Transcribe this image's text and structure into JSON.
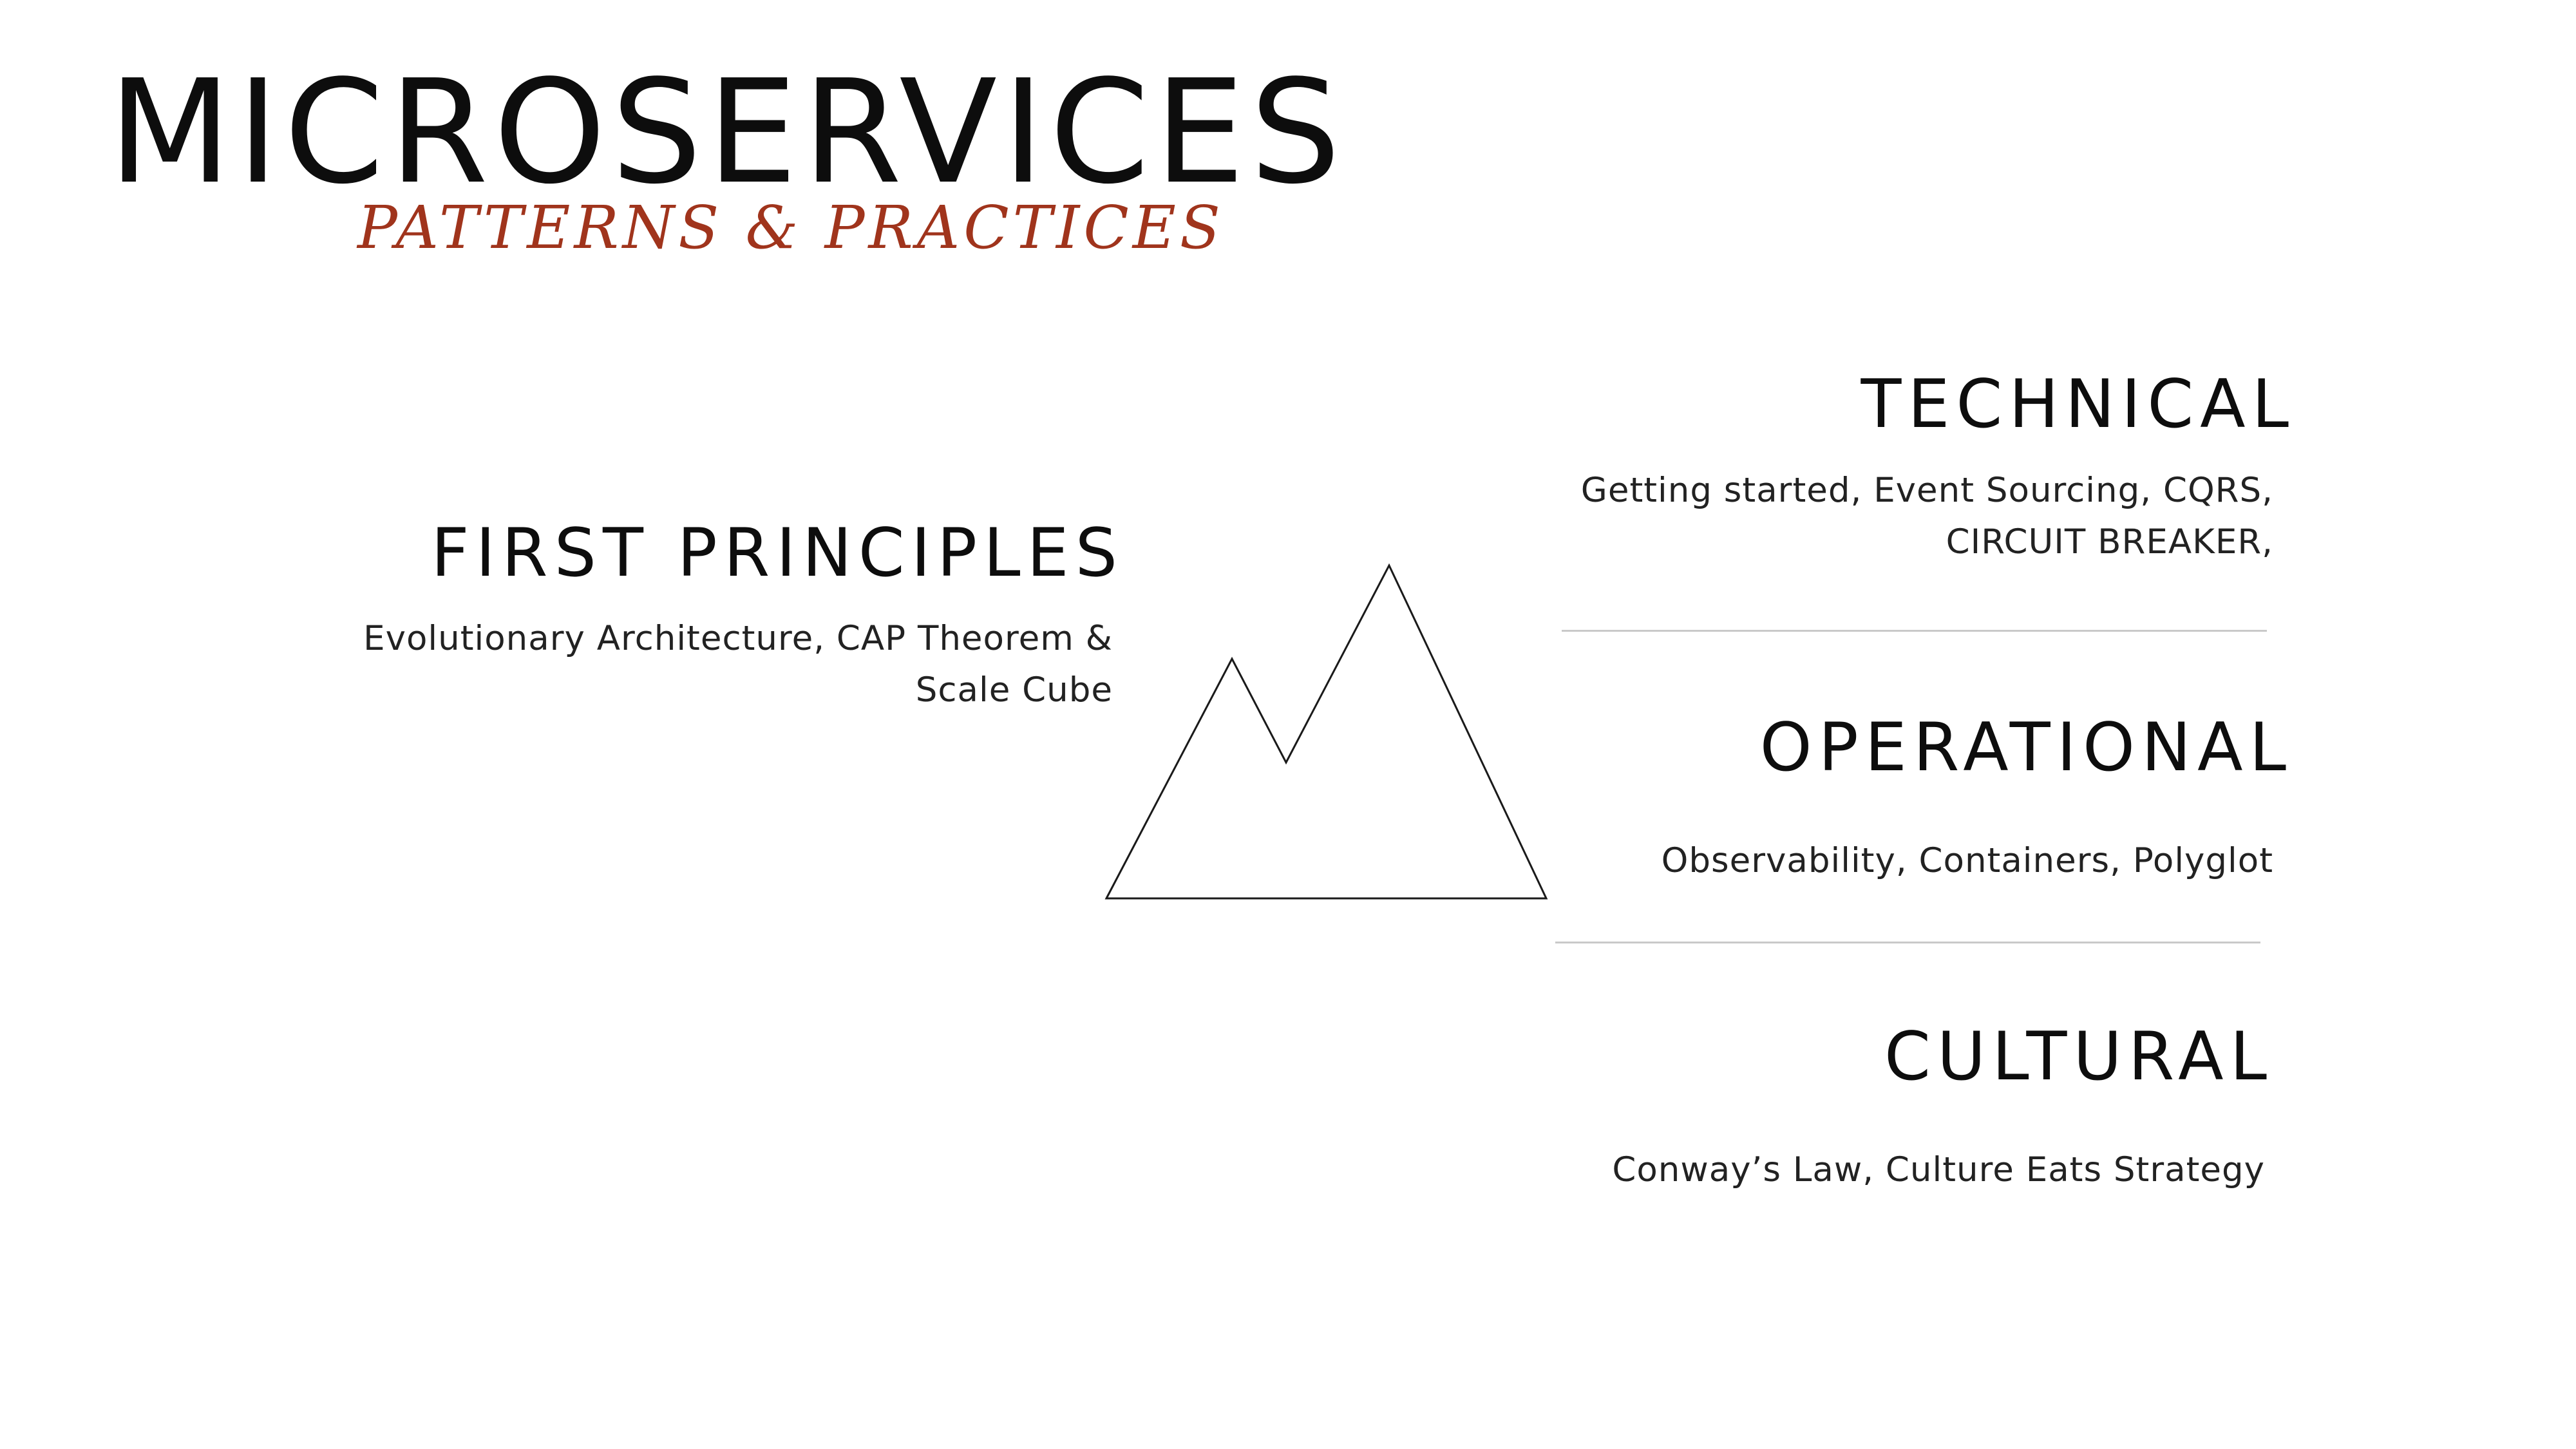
{
  "header": {
    "title": "MICROSERVICES",
    "subtitle": "PATTERNS & PRACTICES"
  },
  "sections": {
    "first_principles": {
      "heading": "FIRST PRINCIPLES",
      "lines": [
        "Evolutionary Architecture, CAP Theorem &",
        "Scale Cube"
      ]
    },
    "technical": {
      "heading": "TECHNICAL",
      "lines": [
        "Getting started, Event Sourcing, CQRS,",
        "CIRCUIT BREAKER,"
      ]
    },
    "operational": {
      "heading": "OPERATIONAL",
      "lines": [
        "Observability, Containers, Polyglot"
      ]
    },
    "cultural": {
      "heading": "CULTURAL",
      "lines": [
        "Conway’s Law, Culture Eats Strategy"
      ]
    }
  },
  "colors": {
    "subtitle": "#a0341c",
    "text": "#0d0d0d",
    "divider": "#c9c9c9",
    "background": "#ffffff"
  },
  "icons": {
    "mountain": "mountain-icon"
  }
}
